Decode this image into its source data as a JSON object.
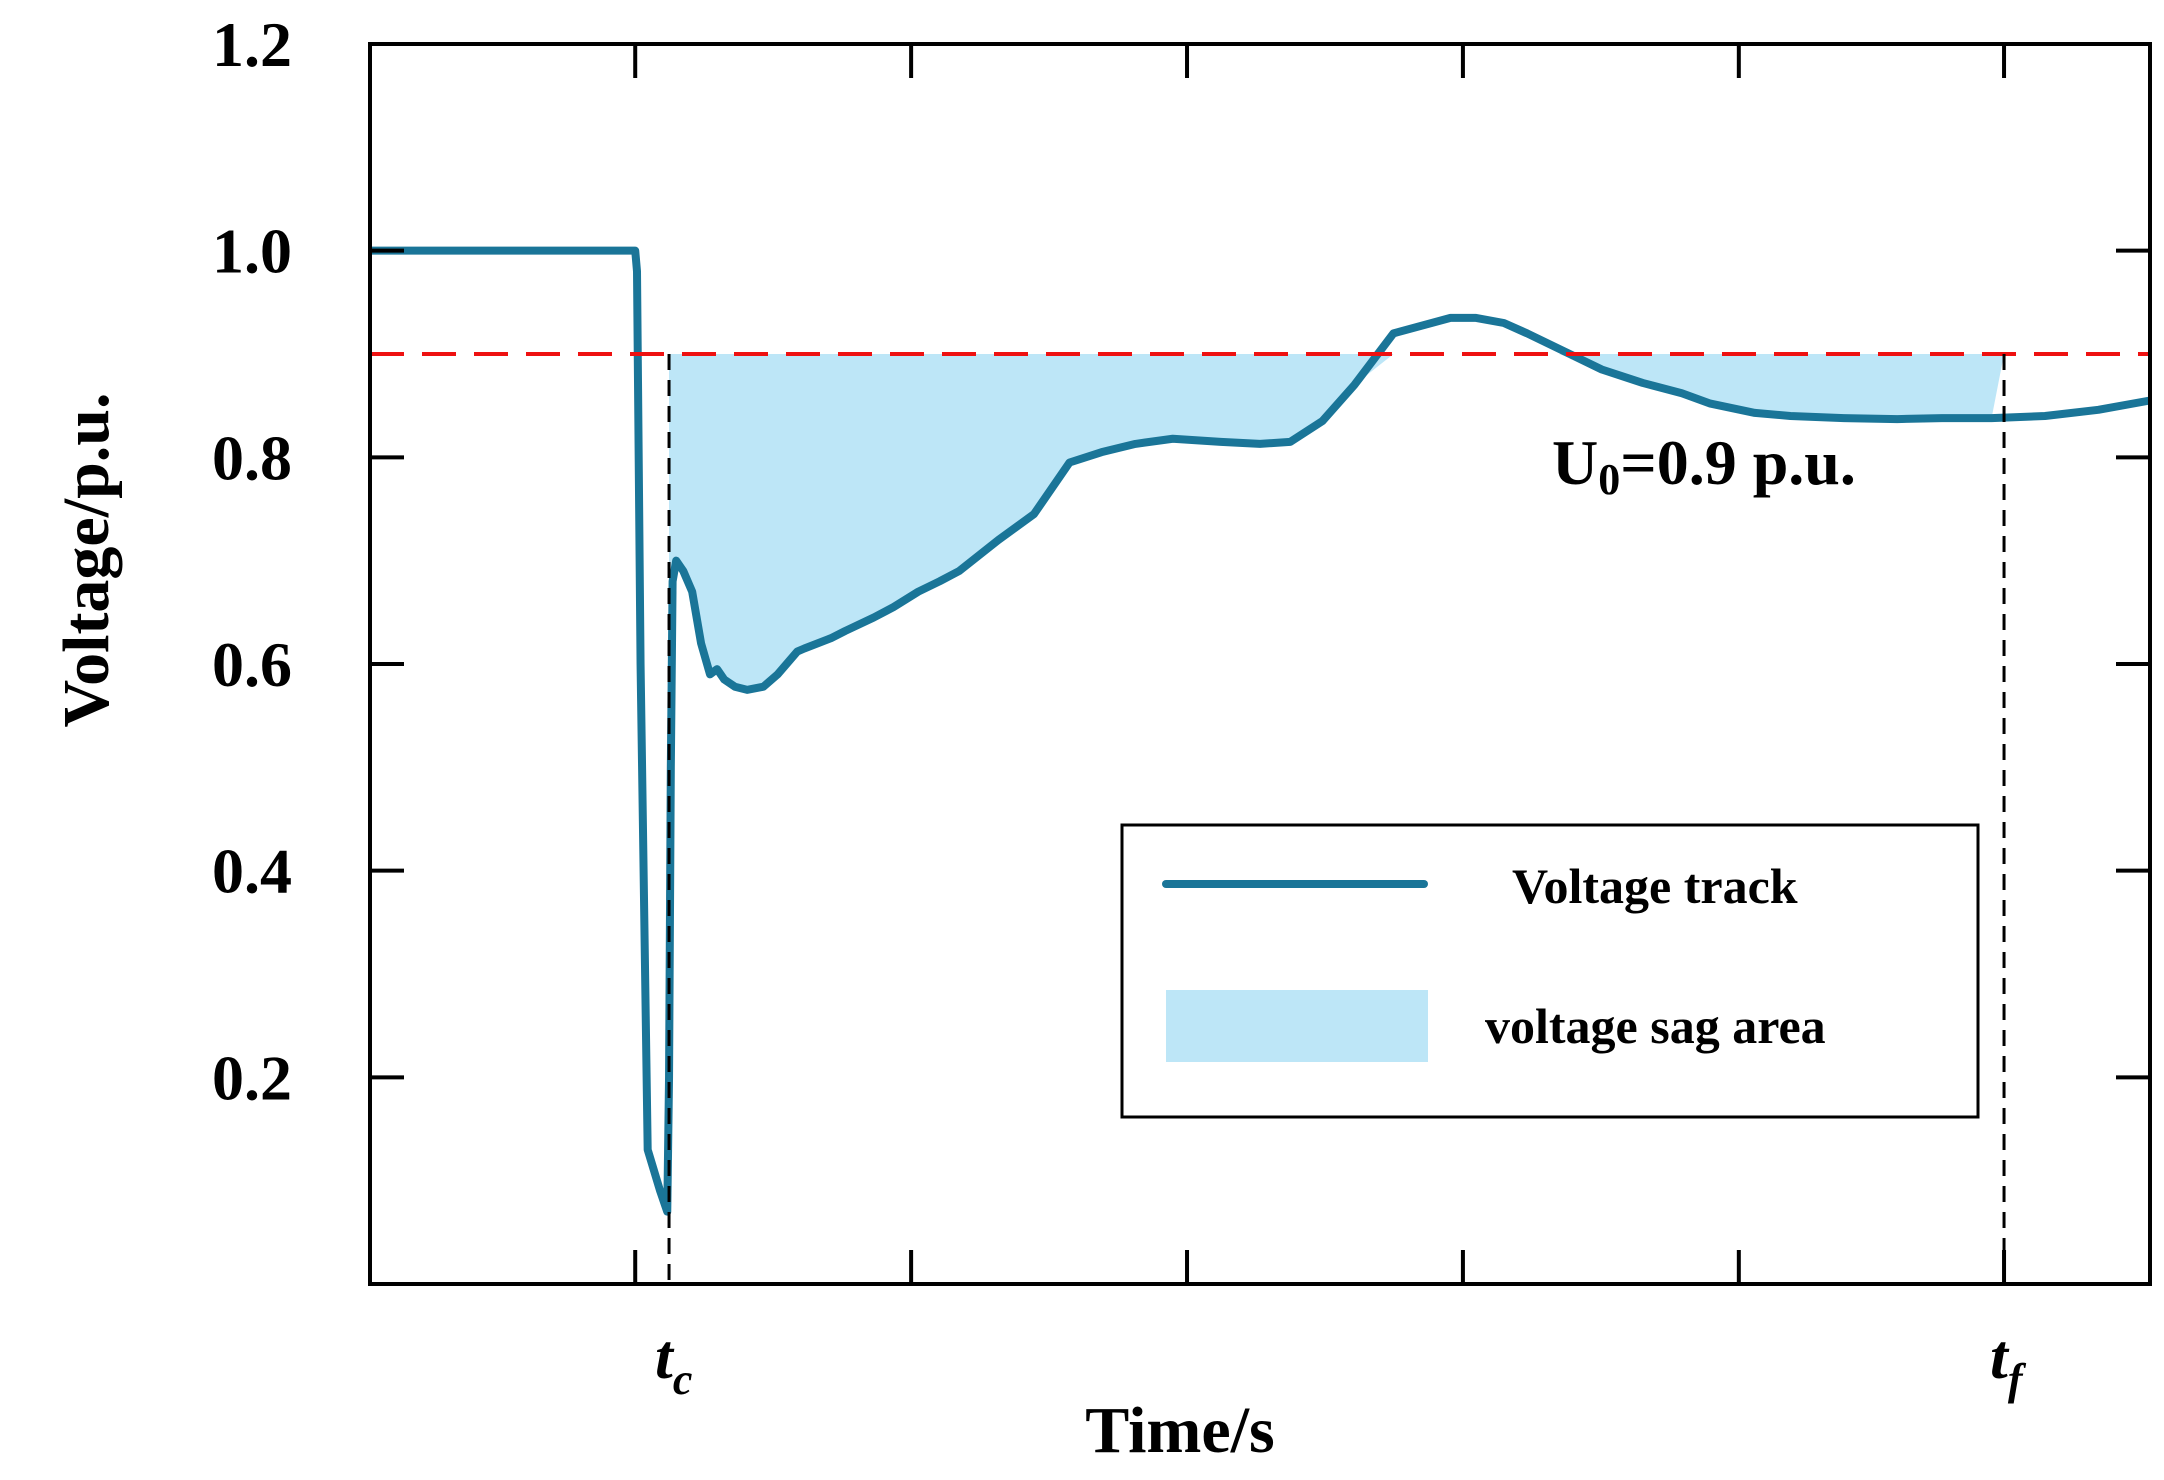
{
  "chart_data": {
    "type": "line",
    "xlabel": "Time/s",
    "ylabel": "Voltage/p.u.",
    "ylim": [
      0.0,
      1.2
    ],
    "xlim": [
      0.0,
      1.0
    ],
    "yticks": [
      {
        "value": 0.2,
        "label": "0.2"
      },
      {
        "value": 0.4,
        "label": "0.4"
      },
      {
        "value": 0.6,
        "label": "0.6"
      },
      {
        "value": 0.8,
        "label": "0.8"
      },
      {
        "value": 1.0,
        "label": "1.0"
      },
      {
        "value": 1.2,
        "label": "1.2"
      }
    ],
    "xticks": [
      0.149,
      0.304,
      0.459,
      0.614,
      0.769,
      0.918
    ],
    "x_markers": [
      {
        "x": 0.168,
        "name": "t",
        "sub": "c"
      },
      {
        "x": 0.918,
        "name": "t",
        "sub": "f"
      }
    ],
    "threshold": {
      "value": 0.9,
      "label_main": "U",
      "label_sub": "0",
      "label_rest": "=0.9 p.u.",
      "color": "#ee1111"
    },
    "series": [
      {
        "name": "Voltage track",
        "color": "#1a7598",
        "x": [
          0.0,
          0.149,
          0.15,
          0.152,
          0.156,
          0.163,
          0.167,
          0.168,
          0.169,
          0.17,
          0.172,
          0.176,
          0.181,
          0.186,
          0.191,
          0.195,
          0.199,
          0.205,
          0.212,
          0.221,
          0.229,
          0.24,
          0.244,
          0.259,
          0.267,
          0.283,
          0.294,
          0.308,
          0.32,
          0.331,
          0.353,
          0.373,
          0.393,
          0.411,
          0.43,
          0.451,
          0.478,
          0.5,
          0.517,
          0.535,
          0.553,
          0.575,
          0.607,
          0.621,
          0.637,
          0.65,
          0.668,
          0.692,
          0.715,
          0.737,
          0.753,
          0.778,
          0.798,
          0.828,
          0.858,
          0.883,
          0.911,
          0.941,
          0.971,
          1.0
        ],
        "y": [
          1.0,
          1.0,
          0.98,
          0.6,
          0.13,
          0.09,
          0.07,
          0.2,
          0.5,
          0.68,
          0.7,
          0.69,
          0.67,
          0.62,
          0.59,
          0.595,
          0.585,
          0.578,
          0.575,
          0.578,
          0.59,
          0.612,
          0.615,
          0.625,
          0.632,
          0.645,
          0.655,
          0.67,
          0.68,
          0.69,
          0.72,
          0.745,
          0.795,
          0.805,
          0.813,
          0.818,
          0.815,
          0.813,
          0.815,
          0.835,
          0.87,
          0.92,
          0.935,
          0.935,
          0.93,
          0.92,
          0.905,
          0.885,
          0.872,
          0.862,
          0.852,
          0.843,
          0.84,
          0.838,
          0.837,
          0.838,
          0.838,
          0.84,
          0.846,
          0.855
        ]
      }
    ],
    "fill": {
      "name": "voltage sag area",
      "color": "#bde6f7",
      "between": [
        "series",
        "threshold"
      ],
      "x_from": 0.168,
      "x_to": 0.918
    },
    "legend": {
      "position": "bottom-right",
      "items": [
        "Voltage track",
        "voltage sag area"
      ]
    },
    "grid": false
  }
}
